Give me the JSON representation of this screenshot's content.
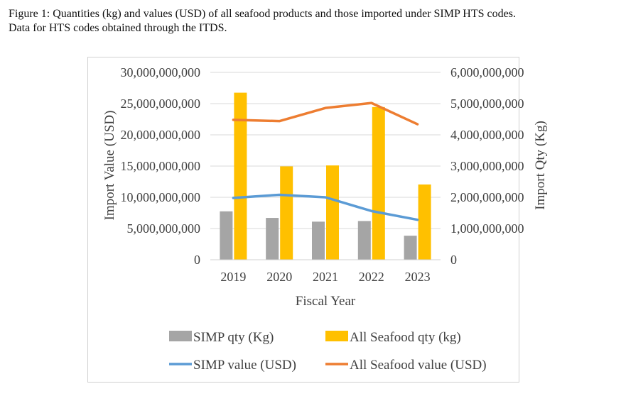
{
  "caption": {
    "line1": "Figure 1:  Quantities (kg) and values (USD) of all seafood products and those imported under SIMP HTS codes.",
    "line2": "Data for HTS codes obtained through the ITDS."
  },
  "chart_data": {
    "type": "bar",
    "categories": [
      "2019",
      "2020",
      "2021",
      "2022",
      "2023"
    ],
    "xlabel": "Fiscal Year",
    "ylabel_left": "Import Value (USD)",
    "ylabel_right": "Import Qty (Kg)",
    "ylim_left": [
      0,
      30000000000
    ],
    "ylim_right": [
      0,
      6000000000
    ],
    "yticks_left": [
      "0",
      "5,000,000,000",
      "10,000,000,000",
      "15,000,000,000",
      "20,000,000,000",
      "25,000,000,000",
      "30,000,000,000"
    ],
    "yticks_right": [
      "0",
      "1,000,000,000",
      "2,000,000,000",
      "3,000,000,000",
      "4,000,000,000",
      "5,000,000,000",
      "6,000,000,000"
    ],
    "grid": true,
    "legend_position": "bottom",
    "bar_series": [
      {
        "name": "SIMP qty (Kg)",
        "axis": "right",
        "color": "#a5a5a5",
        "values": [
          1550000000,
          1340000000,
          1220000000,
          1240000000,
          770000000
        ]
      },
      {
        "name": "All Seafood qty (kg)",
        "axis": "right",
        "color": "#ffc000",
        "values": [
          5350000000,
          2990000000,
          3020000000,
          4890000000,
          2410000000
        ]
      }
    ],
    "line_series": [
      {
        "name": "SIMP value (USD)",
        "axis": "left",
        "color": "#5b9bd5",
        "values": [
          9900000000,
          10400000000,
          10000000000,
          7800000000,
          6400000000
        ]
      },
      {
        "name": "All Seafood value (USD)",
        "axis": "left",
        "color": "#ed7d31",
        "values": [
          22400000000,
          22200000000,
          24300000000,
          25100000000,
          21700000000
        ]
      }
    ]
  }
}
